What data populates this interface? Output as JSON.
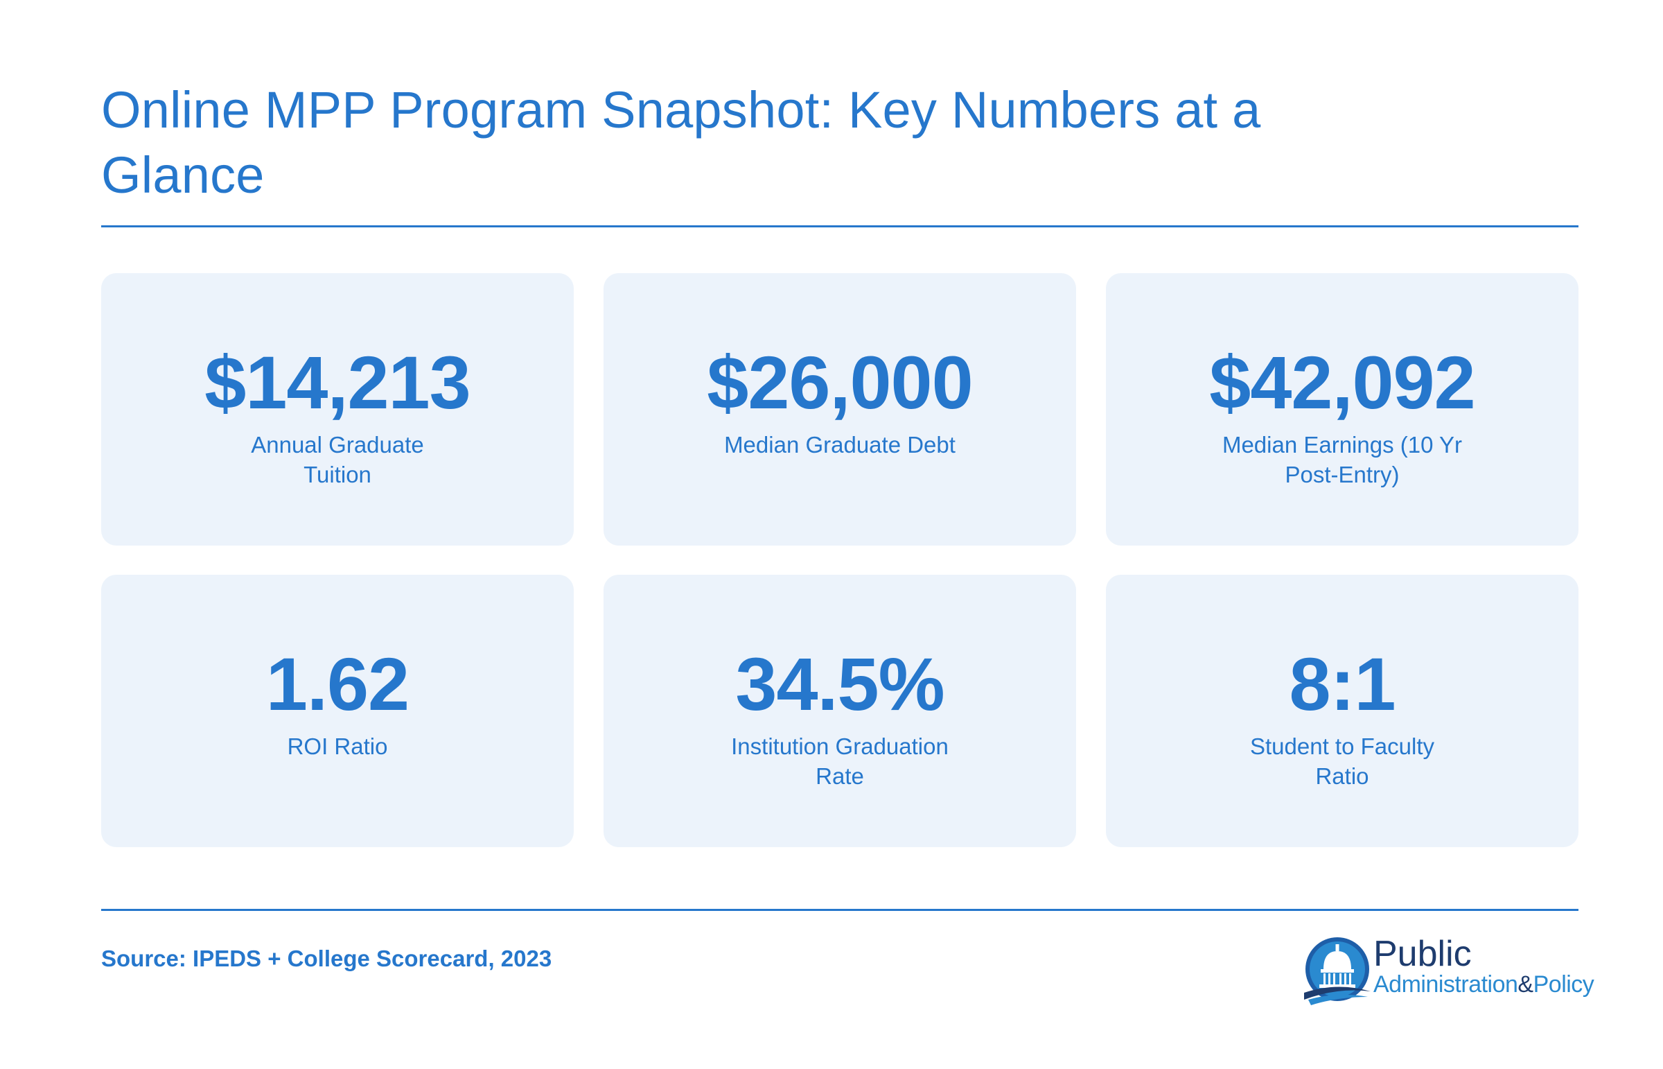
{
  "title": "Online MPP Program Snapshot: Key Numbers at a Glance",
  "cards": [
    {
      "value": "$14,213",
      "label": "Annual Graduate Tuition"
    },
    {
      "value": "$26,000",
      "label": "Median Graduate Debt"
    },
    {
      "value": "$42,092",
      "label": "Median Earnings (10 Yr Post-Entry)"
    },
    {
      "value": "1.62",
      "label": "ROI Ratio"
    },
    {
      "value": "34.5%",
      "label": "Institution Graduation Rate"
    },
    {
      "value": "8:1",
      "label": "Student to Faculty Ratio"
    }
  ],
  "source": "Source: IPEDS + College Scorecard, 2023",
  "logo": {
    "line1": "Public",
    "line2": "Administration",
    "amp": "&",
    "line3": "Policy",
    "icon": "capitol-dome-icon"
  },
  "colors": {
    "accent": "#2677cc",
    "card_bg": "#ecf3fb",
    "logo_dark": "#1e3c6e"
  }
}
